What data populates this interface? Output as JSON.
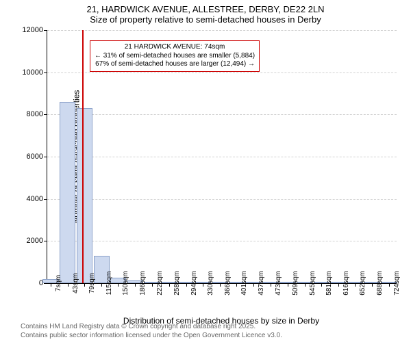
{
  "chart": {
    "type": "histogram",
    "title_line1": "21, HARDWICK AVENUE, ALLESTREE, DERBY, DE22 2LN",
    "title_line2": "Size of property relative to semi-detached houses in Derby",
    "title_fontsize": 13,
    "ylabel": "Number of semi-detached properties",
    "xlabel": "Distribution of semi-detached houses by size in Derby",
    "label_fontsize": 12,
    "background_color": "#ffffff",
    "grid_color": "#d0d0d0",
    "bar_fill": "#cdd9ef",
    "bar_border": "#8aa0c8",
    "marker_color": "#cc0000",
    "ylim": [
      0,
      12000
    ],
    "yticks": [
      0,
      2000,
      4000,
      6000,
      8000,
      10000,
      12000
    ],
    "xmin": 0,
    "xmax": 740,
    "xticks": [
      7,
      43,
      79,
      115,
      150,
      186,
      222,
      258,
      294,
      330,
      366,
      401,
      437,
      473,
      509,
      545,
      581,
      616,
      652,
      688,
      724
    ],
    "xtick_labels": [
      "7sqm",
      "43sqm",
      "79sqm",
      "115sqm",
      "150sqm",
      "186sqm",
      "222sqm",
      "258sqm",
      "294sqm",
      "330sqm",
      "366sqm",
      "401sqm",
      "437sqm",
      "473sqm",
      "509sqm",
      "545sqm",
      "581sqm",
      "616sqm",
      "652sqm",
      "688sqm",
      "724sqm"
    ],
    "bar_width_sqm": 34,
    "bars": [
      {
        "x": 7,
        "y": 200
      },
      {
        "x": 43,
        "y": 8600
      },
      {
        "x": 79,
        "y": 8300
      },
      {
        "x": 115,
        "y": 1300
      },
      {
        "x": 150,
        "y": 250
      },
      {
        "x": 186,
        "y": 140
      },
      {
        "x": 222,
        "y": 60
      },
      {
        "x": 258,
        "y": 50
      },
      {
        "x": 294,
        "y": 30
      },
      {
        "x": 330,
        "y": 20
      },
      {
        "x": 366,
        "y": 15
      },
      {
        "x": 401,
        "y": 10
      },
      {
        "x": 437,
        "y": 8
      },
      {
        "x": 473,
        "y": 6
      },
      {
        "x": 509,
        "y": 5
      },
      {
        "x": 545,
        "y": 4
      },
      {
        "x": 581,
        "y": 3
      },
      {
        "x": 616,
        "y": 2
      },
      {
        "x": 652,
        "y": 2
      },
      {
        "x": 688,
        "y": 1
      },
      {
        "x": 724,
        "y": 1
      }
    ],
    "marker_value": 74,
    "annotation": {
      "line1": "21 HARDWICK AVENUE: 74sqm",
      "line2": "← 31% of semi-detached houses are smaller (5,884)",
      "line3": "67% of semi-detached houses are larger (12,494) →",
      "left_sqm": 90,
      "top_yval": 11500
    }
  },
  "footer": {
    "line1": "Contains HM Land Registry data © Crown copyright and database right 2025.",
    "line2": "Contains public sector information licensed under the Open Government Licence v3.0."
  }
}
